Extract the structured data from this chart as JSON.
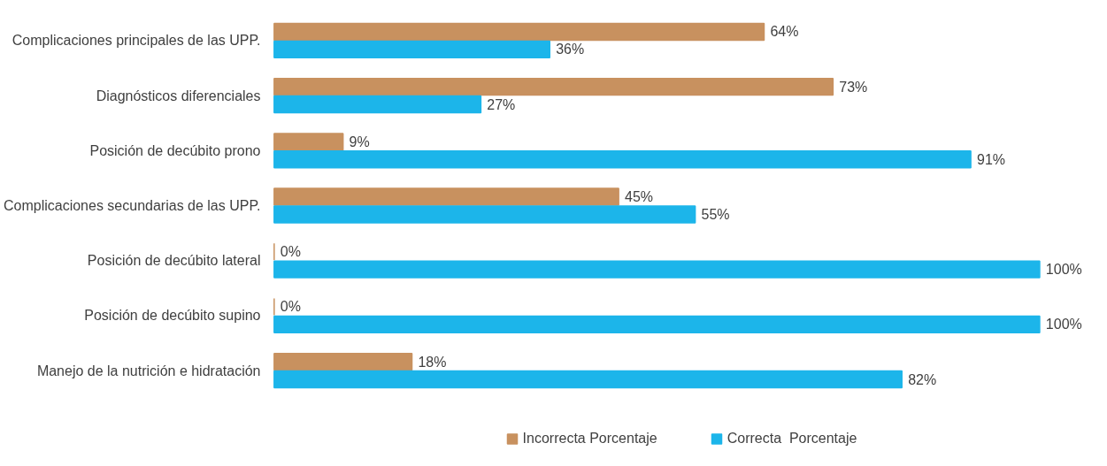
{
  "chart_data": {
    "type": "bar",
    "orientation": "horizontal",
    "legend": "bottom",
    "categories": [
      "Complicaciones principales de las UPP.",
      "Diagnósticos diferenciales",
      "Posición de decúbito prono",
      "Complicaciones secundarias de las UPP.",
      "Posición de decúbito lateral",
      "Posición de decúbito supino",
      "Manejo de la nutrición e hidratación"
    ],
    "series": [
      {
        "name": "Incorrecta Porcentaje",
        "color": "#c8915f",
        "values": [
          64,
          73,
          9,
          45,
          0,
          0,
          18
        ],
        "value_labels": [
          "64%",
          "73%",
          "9%",
          "45%",
          "0%",
          "0%",
          "18%"
        ]
      },
      {
        "name": "Correcta  Porcentaje",
        "color": "#1cb5ea",
        "values": [
          36,
          27,
          91,
          55,
          100,
          100,
          82
        ],
        "value_labels": [
          "36%",
          "27%",
          "91%",
          "55%",
          "100%",
          "100%",
          "82%"
        ]
      }
    ]
  }
}
